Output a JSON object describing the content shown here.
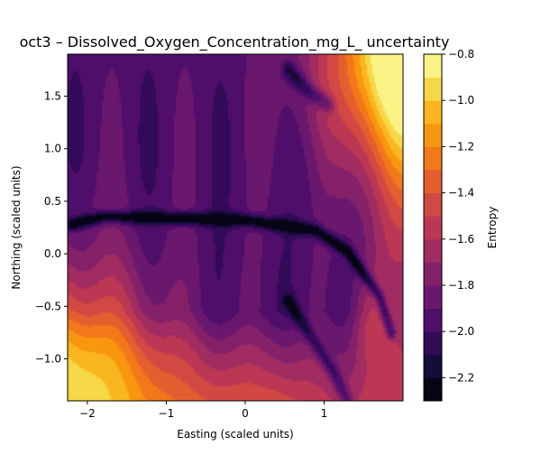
{
  "chart_data": {
    "type": "heatmap",
    "subtype": "filled-contour",
    "title": "oct3 – Dissolved_Oxygen_Concentration_mg_L_ uncertainty",
    "xlabel": "Easting (scaled units)",
    "ylabel": "Northing (scaled units)",
    "xlim": [
      -2.25,
      2.0
    ],
    "ylim": [
      -1.4,
      1.9
    ],
    "x_ticks": [
      -2,
      -1,
      0,
      1
    ],
    "x_tick_labels": [
      "−2",
      "−1",
      "0",
      "1"
    ],
    "y_ticks": [
      -1.0,
      -0.5,
      0.0,
      0.5,
      1.0,
      1.5
    ],
    "y_tick_labels": [
      "−1.0",
      "−0.5",
      "0.0",
      "0.5",
      "1.0",
      "1.5"
    ],
    "colorbar": {
      "label": "Entropy",
      "colormap": "inferno",
      "range": [
        -2.3,
        -0.8
      ],
      "levels": [
        -2.3,
        -2.2,
        -2.1,
        -2.0,
        -1.9,
        -1.8,
        -1.7,
        -1.6,
        -1.5,
        -1.4,
        -1.3,
        -1.2,
        -1.1,
        -1.0,
        -0.9,
        -0.8
      ],
      "ticks": [
        -2.2,
        -2.0,
        -1.8,
        -1.6,
        -1.4,
        -1.2,
        -1.0,
        -0.8
      ],
      "tick_labels": [
        "−2.2",
        "−2.0",
        "−1.8",
        "−1.6",
        "−1.4",
        "−1.2",
        "−1.0",
        "−0.8"
      ]
    },
    "grid": false,
    "field_features": {
      "low_entropy_ridge": {
        "x": [
          -2.2,
          -1.8,
          -1.0,
          0.0,
          0.9,
          1.3,
          1.7,
          1.85
        ],
        "y": [
          0.28,
          0.35,
          0.34,
          0.32,
          0.22,
          0.02,
          -0.4,
          -0.75
        ]
      },
      "low_entropy_ridge_north": {
        "x": [
          0.55,
          0.8,
          1.05
        ],
        "y": [
          1.75,
          1.55,
          1.42
        ]
      },
      "low_entropy_ridge_south": {
        "x": [
          0.55,
          0.8,
          1.1,
          1.3
        ],
        "y": [
          -0.45,
          -0.75,
          -1.1,
          -1.4
        ]
      },
      "high_entropy_corner_sw": {
        "x": -2.25,
        "y": -1.4,
        "value": -0.9
      },
      "high_entropy_corner_ne": {
        "x": 2.0,
        "y": 1.9,
        "value": -0.9
      }
    }
  }
}
